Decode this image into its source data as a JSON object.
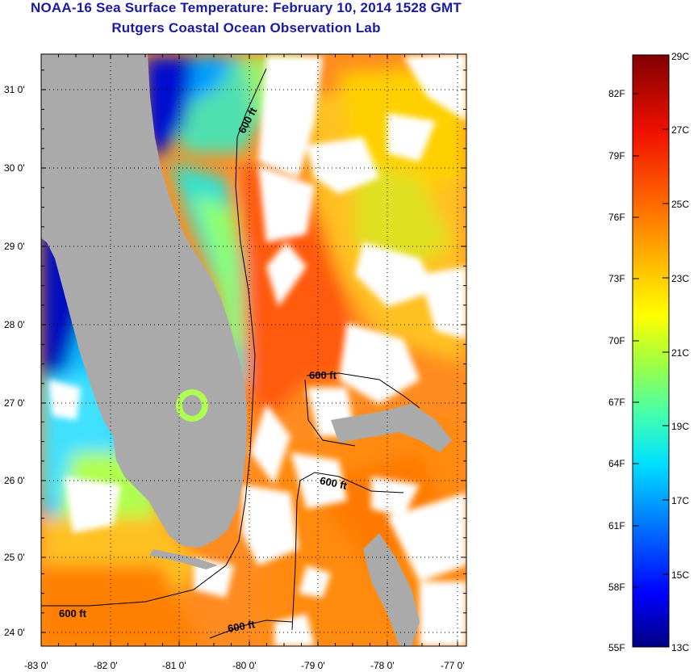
{
  "header": {
    "title": "NOAA-16 Sea Surface Temperature:  February 10, 2014 1528 GMT",
    "subtitle": "Rutgers Coastal Ocean Observation Lab"
  },
  "map": {
    "latitude_labels": [
      "31 0'",
      "30 0'",
      "29 0'",
      "28 0'",
      "27 0'",
      "26 0'",
      "25 0'",
      "24 0'"
    ],
    "longitude_labels": [
      "-83 0'",
      "-82 0'",
      "-81 0'",
      "-80 0'",
      "-79 0'",
      "-78 0'",
      "-77 0'"
    ],
    "contour_label": "600 ft",
    "land_color": "#aaaaaa",
    "cloud_color": "#ffffff"
  },
  "colorbar": {
    "fahrenheit_labels": [
      "82F",
      "79F",
      "76F",
      "73F",
      "70F",
      "67F",
      "64F",
      "61F",
      "58F",
      "55F"
    ],
    "celsius_labels": [
      "29C",
      "27C",
      "25C",
      "23C",
      "21C",
      "19C",
      "17C",
      "15C",
      "13C"
    ],
    "colors": [
      "#000080",
      "#0000ff",
      "#00b0ff",
      "#00ffe0",
      "#80ff40",
      "#ffff00",
      "#ffb000",
      "#ff5000",
      "#e00000",
      "#800000"
    ]
  }
}
